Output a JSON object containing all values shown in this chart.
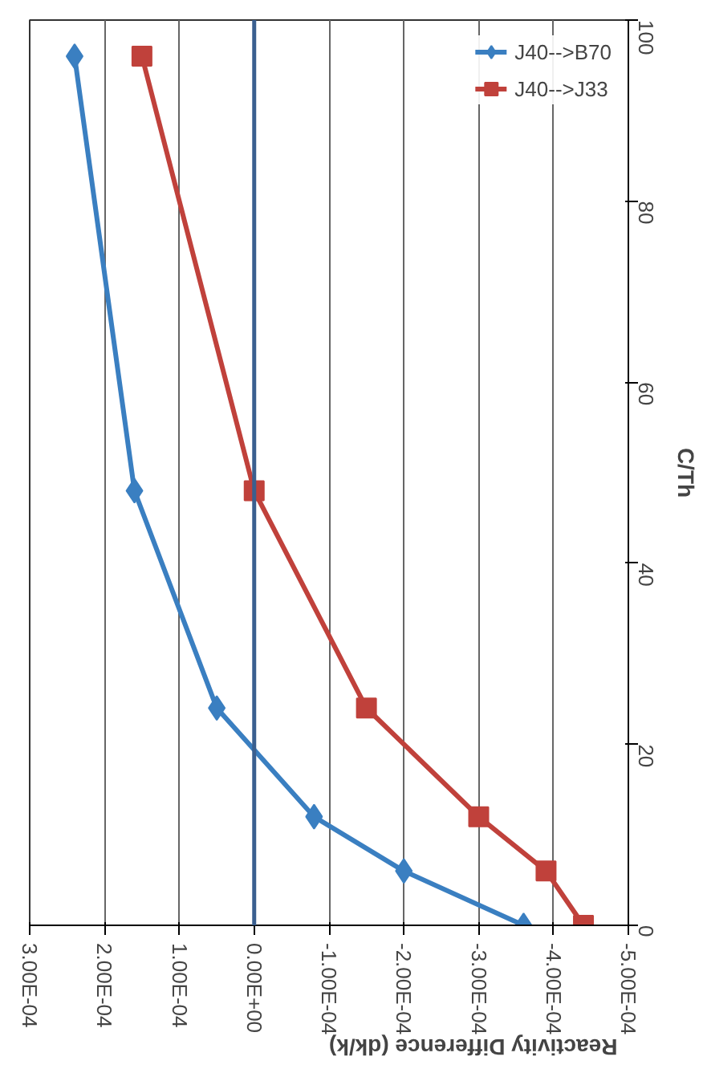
{
  "chart_data": {
    "type": "line",
    "xlabel": "Reactivity Difference (dk/k)",
    "ylabel": "C/Th",
    "ylim": [
      0,
      100
    ],
    "yticks": [
      0,
      20,
      40,
      60,
      80,
      100
    ],
    "xlim": [
      0.0003,
      -0.0005
    ],
    "xticks": [
      {
        "value": 0.0003,
        "label": "3.00E-04"
      },
      {
        "value": 0.0002,
        "label": "2.00E-04"
      },
      {
        "value": 0.0001,
        "label": "1.00E-04"
      },
      {
        "value": 0,
        "label": "0.00E+00"
      },
      {
        "value": -0.0001,
        "label": "-1.00E-04"
      },
      {
        "value": -0.0002,
        "label": "-2.00E-04"
      },
      {
        "value": -0.0003,
        "label": "-3.00E-04"
      },
      {
        "value": -0.0004,
        "label": "-4.00E-04"
      },
      {
        "value": -0.0005,
        "label": "-5.00E-04"
      }
    ],
    "grid": "x",
    "legend": "top right",
    "ref_lines": [
      {
        "axis": "x",
        "value": 0,
        "color": "#3a5f8f"
      }
    ],
    "series": [
      {
        "name": "J40-->B70",
        "color": "#3a7fc1",
        "marker": "diamond",
        "x": [
          -0.00036,
          -0.0002,
          -8e-05,
          5e-05,
          0.00016,
          0.00024
        ],
        "values": [
          0,
          6,
          12,
          24,
          48,
          96
        ]
      },
      {
        "name": "J40-->J33",
        "color": "#c0413b",
        "marker": "square",
        "x": [
          -0.00044,
          -0.00039,
          -0.0003,
          -0.00015,
          0.0,
          0.00015
        ],
        "values": [
          0,
          6,
          12,
          24,
          48,
          96
        ]
      }
    ]
  }
}
